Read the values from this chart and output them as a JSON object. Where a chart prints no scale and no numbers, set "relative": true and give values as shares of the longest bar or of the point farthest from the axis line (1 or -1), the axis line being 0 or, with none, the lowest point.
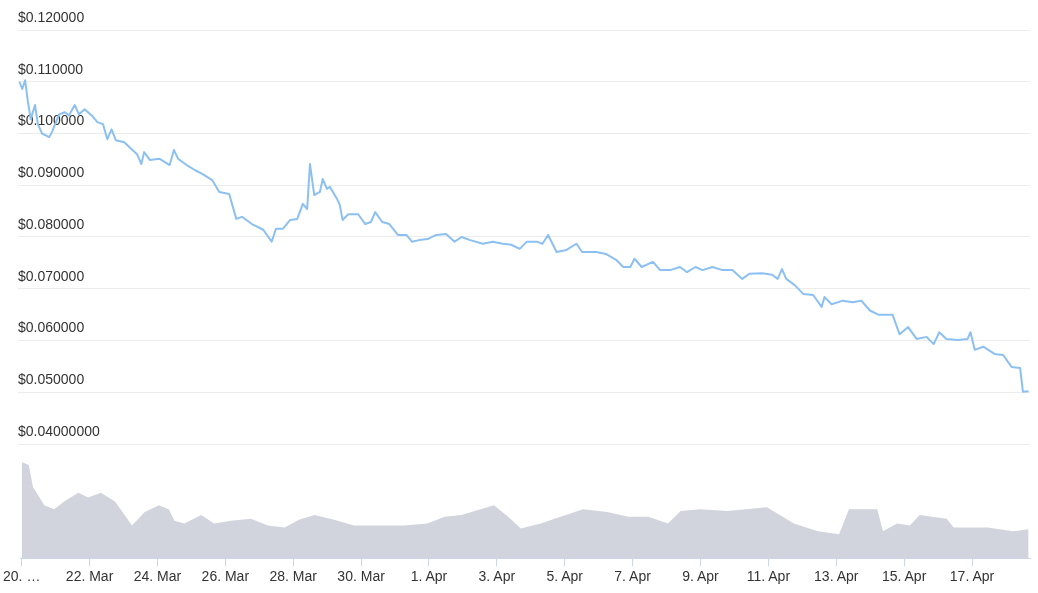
{
  "chart_data": [
    {
      "type": "line",
      "xlim": [
        "--03-19T23:00",
        "--04-18T17:00"
      ],
      "ylim": [
        0.04,
        0.12
      ],
      "yticks": [
        {
          "value": 0.12,
          "label": "$0.120000"
        },
        {
          "value": 0.11,
          "label": "$0.110000"
        },
        {
          "value": 0.1,
          "label": "$0.100000"
        },
        {
          "value": 0.09,
          "label": "$0.090000"
        },
        {
          "value": 0.08,
          "label": "$0.080000"
        },
        {
          "value": 0.07,
          "label": "$0.070000"
        },
        {
          "value": 0.06,
          "label": "$0.060000"
        },
        {
          "value": 0.05,
          "label": "$0.050000"
        },
        {
          "value": 0.04,
          "label": "$0.04000000"
        }
      ],
      "tick_labels": "y",
      "grid": "y",
      "series": [
        {
          "color": "#8cc0f2",
          "x": [
            "--03-20T00:00",
            "--03-20T02:00",
            "--03-20T04:00",
            "--03-20T06:00",
            "--03-20T08:00",
            "--03-20T11:00",
            "--03-20T13:00",
            "--03-20T16:00",
            "--03-20T21:00",
            "--03-20T23:00",
            "--03-21T04:00",
            "--03-21T08:00",
            "--03-21T11:00",
            "--03-21T15:00",
            "--03-21T18:00",
            "--03-21T22:00",
            "--03-22T03:00",
            "--03-22T07:00",
            "--03-22T11:00",
            "--03-22T14:00",
            "--03-22T17:00",
            "--03-22T20:00",
            "--03-23T02:00",
            "--03-23T07:00",
            "--03-23T11:00",
            "--03-23T14:00",
            "--03-23T16:00",
            "--03-23T20:00",
            "--03-24T03:00",
            "--03-24T10:00",
            "--03-24T13:00",
            "--03-24T16:00",
            "--03-24T22:00",
            "--03-25T04:00",
            "--03-25T09:00",
            "--03-25T16:00",
            "--03-25T21:00",
            "--03-26T04:00",
            "--03-26T09:00",
            "--03-26T13:00",
            "--03-26T20:00",
            "--03-27T04:00",
            "--03-27T10:00",
            "--03-27T13:00",
            "--03-27T18:00",
            "--03-27T23:00",
            "--03-28T04:00",
            "--03-28T08:00",
            "--03-28T11:00",
            "--03-28T13:00",
            "--03-28T16:00",
            "--03-28T20:00",
            "--03-28T22:00",
            "--03-29T01:00",
            "--03-29T03:00",
            "--03-29T08:00",
            "--03-29T10:00",
            "--03-29T12:00",
            "--03-29T16:00",
            "--03-29T23:00",
            "--03-30T04:00",
            "--03-30T08:00",
            "--03-30T11:00",
            "--03-30T16:00",
            "--03-30T21:00",
            "--03-31T03:00",
            "--03-31T09:00",
            "--03-31T13:00",
            "--03-31T18:00",
            "--04-01T00:00",
            "--04-01T06:00",
            "--04-01T13:00",
            "--04-01T19:00",
            "--04-02T00:00",
            "--04-02T06:00",
            "--04-02T15:00",
            "--04-02T22:00",
            "--04-03T05:00",
            "--04-03T11:00",
            "--04-03T17:00",
            "--04-03T22:00",
            "--04-04T05:00",
            "--04-04T09:00",
            "--04-04T13:00",
            "--04-04T19:00",
            "--04-05T02:00",
            "--04-05T09:00",
            "--04-05T13:00",
            "--04-05T23:00",
            "--04-06T06:00",
            "--04-06T13:00",
            "--04-06T18:00",
            "--04-06T23:00",
            "--04-07T02:00",
            "--04-07T07:00",
            "--04-07T15:00",
            "--04-07T20:00",
            "--04-08T03:00",
            "--04-08T10:00",
            "--04-08T15:00",
            "--04-08T21:00",
            "--04-09T02:00",
            "--04-09T09:00",
            "--04-09T16:00",
            "--04-09T23:00",
            "--04-10T06:00",
            "--04-10T11:00",
            "--04-10T20:00",
            "--04-11T03:00",
            "--04-11T07:00",
            "--04-11T10:00",
            "--04-11T13:00",
            "--04-11T19:00",
            "--04-12T01:00",
            "--04-12T08:00",
            "--04-12T14:00",
            "--04-12T16:00",
            "--04-12T21:00",
            "--04-13T05:00",
            "--04-13T12:00",
            "--04-13T18:00",
            "--04-14T00:00",
            "--04-14T06:00",
            "--04-14T16:00",
            "--04-14T21:00",
            "--04-15T03:00",
            "--04-15T09:00",
            "--04-15T16:00",
            "--04-15T21:00",
            "--04-16T01:00",
            "--04-16T06:00",
            "--04-16T14:00",
            "--04-16T21:00",
            "--04-16T23:00",
            "--04-17T02:00",
            "--04-17T08:00",
            "--04-17T16:00",
            "--04-17T22:00",
            "--04-18T04:00",
            "--04-18T10:00",
            "--04-18T12:00",
            "--04-18T16:00"
          ],
          "values": [
            0.11,
            0.1086,
            0.1103,
            0.1061,
            0.1028,
            0.1055,
            0.1018,
            0.1,
            0.0993,
            0.1003,
            0.1037,
            0.1041,
            0.1035,
            0.1055,
            0.1037,
            0.1047,
            0.1035,
            0.1022,
            0.1018,
            0.0989,
            0.1008,
            0.0987,
            0.0983,
            0.097,
            0.096,
            0.0941,
            0.0964,
            0.0949,
            0.0951,
            0.0939,
            0.0968,
            0.0951,
            0.0939,
            0.0929,
            0.0922,
            0.091,
            0.0887,
            0.0883,
            0.0835,
            0.0839,
            0.0825,
            0.0814,
            0.0791,
            0.0816,
            0.0816,
            0.0833,
            0.0835,
            0.0864,
            0.0854,
            0.0941,
            0.0881,
            0.0887,
            0.0912,
            0.0893,
            0.0897,
            0.0874,
            0.0862,
            0.0833,
            0.0844,
            0.0844,
            0.0825,
            0.0829,
            0.0848,
            0.0829,
            0.0825,
            0.0804,
            0.0804,
            0.0791,
            0.0794,
            0.0796,
            0.0804,
            0.0806,
            0.0791,
            0.08,
            0.0794,
            0.0787,
            0.0791,
            0.0787,
            0.0785,
            0.0777,
            0.0791,
            0.0791,
            0.0787,
            0.0804,
            0.0771,
            0.0775,
            0.0787,
            0.0771,
            0.0771,
            0.0767,
            0.0756,
            0.0742,
            0.0742,
            0.0758,
            0.0742,
            0.0752,
            0.0736,
            0.0736,
            0.0742,
            0.0732,
            0.0742,
            0.0736,
            0.0742,
            0.0736,
            0.0736,
            0.0719,
            0.0729,
            0.073,
            0.0727,
            0.0719,
            0.0738,
            0.0719,
            0.0707,
            0.069,
            0.0688,
            0.0665,
            0.0684,
            0.067,
            0.0677,
            0.0674,
            0.0677,
            0.0658,
            0.065,
            0.065,
            0.0612,
            0.0626,
            0.0603,
            0.0607,
            0.0593,
            0.0616,
            0.0603,
            0.0601,
            0.0603,
            0.0616,
            0.0582,
            0.0588,
            0.0574,
            0.0572,
            0.0549,
            0.0547,
            0.0501,
            0.0502
          ]
        }
      ]
    },
    {
      "type": "area",
      "relative": true,
      "xlim": [
        "--03-19T23:00",
        "--04-18T17:00"
      ],
      "xticks": [
        {
          "value": "--03-20",
          "label": "20. …"
        },
        {
          "value": "--03-22",
          "label": "22. Mar"
        },
        {
          "value": "--03-24",
          "label": "24. Mar"
        },
        {
          "value": "--03-26",
          "label": "26. Mar"
        },
        {
          "value": "--03-28",
          "label": "28. Mar"
        },
        {
          "value": "--03-30",
          "label": "30. Mar"
        },
        {
          "value": "--04-01",
          "label": "1. Apr"
        },
        {
          "value": "--04-03",
          "label": "3. Apr"
        },
        {
          "value": "--04-05",
          "label": "5. Apr"
        },
        {
          "value": "--04-07",
          "label": "7. Apr"
        },
        {
          "value": "--04-09",
          "label": "9. Apr"
        },
        {
          "value": "--04-11",
          "label": "11. Apr"
        },
        {
          "value": "--04-13",
          "label": "13. Apr"
        },
        {
          "value": "--04-15",
          "label": "15. Apr"
        },
        {
          "value": "--04-17",
          "label": "17. Apr"
        }
      ],
      "tick_labels": "x",
      "series": [
        {
          "color": "#d1d4dc",
          "x": [
            "--03-20T00:00",
            "--03-20T05:00",
            "--03-20T08:00",
            "--03-20T16:00",
            "--03-20T23:00",
            "--03-21T06:00",
            "--03-21T16:00",
            "--03-21T23:00",
            "--03-22T08:00",
            "--03-22T18:00",
            "--03-23T06:00",
            "--03-23T15:00",
            "--03-24T01:00",
            "--03-24T08:00",
            "--03-24T12:00",
            "--03-24T19:00",
            "--03-25T07:00",
            "--03-25T16:00",
            "--03-26T04:00",
            "--03-26T18:00",
            "--03-27T06:00",
            "--03-27T18:00",
            "--03-28T04:00",
            "--03-28T15:00",
            "--03-29T05:00",
            "--03-29T19:00",
            "--03-30T14:00",
            "--03-31T06:00",
            "--03-31T23:00",
            "--04-01T11:00",
            "--04-01T23:00",
            "--04-02T22:00",
            "--04-03T08:00",
            "--04-03T17:00",
            "--04-04T07:00",
            "--04-04T21:00",
            "--04-05T13:00",
            "--04-06T06:00",
            "--04-06T21:00",
            "--04-07T11:00",
            "--04-08T01:00",
            "--04-08T10:00",
            "--04-09T00:00",
            "--04-09T19:00",
            "--04-10T23:00",
            "--04-11T18:00",
            "--04-12T11:00",
            "--04-13T02:00",
            "--04-13T09:00",
            "--04-14T05:00",
            "--04-14T09:00",
            "--04-14T19:00",
            "--04-15T04:00",
            "--04-15T11:00",
            "--04-16T06:00",
            "--04-16T11:00",
            "--04-17T11:00",
            "--04-18T05:00",
            "--04-18T16:00"
          ],
          "values": [
            1,
            0.97,
            0.74,
            0.55,
            0.51,
            0.59,
            0.68,
            0.63,
            0.68,
            0.59,
            0.34,
            0.48,
            0.55,
            0.51,
            0.39,
            0.36,
            0.45,
            0.36,
            0.39,
            0.41,
            0.34,
            0.32,
            0.4,
            0.45,
            0.4,
            0.34,
            0.34,
            0.34,
            0.36,
            0.43,
            0.45,
            0.55,
            0.43,
            0.31,
            0.36,
            0.43,
            0.51,
            0.48,
            0.43,
            0.43,
            0.36,
            0.49,
            0.51,
            0.49,
            0.53,
            0.36,
            0.28,
            0.25,
            0.51,
            0.51,
            0.28,
            0.36,
            0.34,
            0.45,
            0.41,
            0.32,
            0.32,
            0.28,
            0.3
          ]
        }
      ]
    }
  ]
}
